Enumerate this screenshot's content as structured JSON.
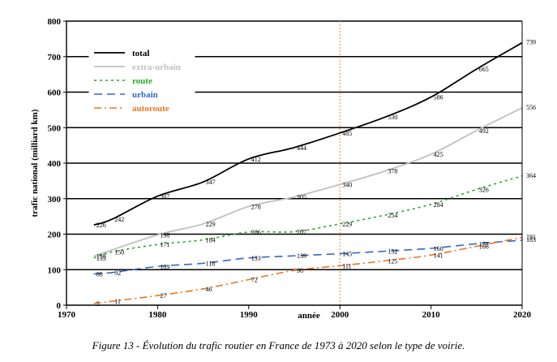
{
  "chart_data": {
    "type": "line",
    "xlabel": "année",
    "ylabel": "trafic national (milliard km)",
    "xlim": [
      1970,
      2020
    ],
    "ylim": [
      0,
      800
    ],
    "x_ticks": [
      "1970",
      "1980",
      "1990",
      "2000",
      "2010",
      "2020"
    ],
    "y_ticks": [
      "0",
      "100",
      "200",
      "300",
      "400",
      "500",
      "600",
      "700",
      "800"
    ],
    "grid": "horizontal",
    "reference_line": {
      "x": 2000,
      "color": "#f0a040"
    },
    "legend_position": "top-left",
    "series": [
      {
        "name": "total",
        "color": "#000000",
        "style": "solid",
        "x": [
          1973,
          1975,
          1980,
          1985,
          1990,
          1995,
          2000,
          2005,
          2010,
          2015,
          2020
        ],
        "y": [
          226,
          242,
          307,
          347,
          412,
          444,
          485,
          530,
          586,
          665,
          739
        ],
        "labels": [
          "226",
          "242",
          "307",
          "347",
          "412",
          "444",
          "485",
          "530",
          "586",
          "665",
          "739"
        ]
      },
      {
        "name": "extra-urbain",
        "color": "#c0c0c0",
        "style": "solid",
        "x": [
          1973,
          1980,
          1985,
          1990,
          1995,
          2000,
          2005,
          2010,
          2015,
          2020
        ],
        "y": [
          138,
          198,
          229,
          278,
          305,
          340,
          378,
          425,
          492,
          556
        ],
        "labels": [
          "138",
          "198",
          "229",
          "278",
          "305",
          "340",
          "378",
          "425",
          "492",
          "556"
        ]
      },
      {
        "name": "route",
        "color": "#22aa22",
        "style": "dotted",
        "x": [
          1973,
          1975,
          1980,
          1985,
          1990,
          1995,
          2000,
          2005,
          2010,
          2015,
          2020
        ],
        "y": [
          133,
          150,
          171,
          184,
          206,
          207,
          229,
          254,
          284,
          326,
          364
        ],
        "labels": [
          "133",
          "150",
          "171",
          "184",
          "206",
          "207",
          "229",
          "254",
          "284",
          "326",
          "364"
        ]
      },
      {
        "name": "urbain",
        "color": "#3366cc",
        "style": "dashed",
        "x": [
          1973,
          1975,
          1980,
          1985,
          1990,
          1995,
          2000,
          2005,
          2010,
          2015,
          2020
        ],
        "y": [
          88,
          92,
          109,
          118,
          133,
          139,
          145,
          152,
          160,
          173,
          183
        ],
        "labels": [
          "88",
          "92",
          "109",
          "118",
          "133",
          "139",
          "145",
          "152",
          "160",
          "173",
          "183"
        ]
      },
      {
        "name": "autoroute",
        "color": "#e87722",
        "style": "dashdot",
        "x": [
          1973,
          1975,
          1980,
          1985,
          1990,
          1995,
          2000,
          2005,
          2010,
          2015,
          2020
        ],
        "y": [
          5,
          11,
          27,
          46,
          72,
          98,
          111,
          125,
          141,
          166,
          191
        ],
        "labels": [
          "5",
          "11",
          "27",
          "46",
          "72",
          "98",
          "111",
          "125",
          "141",
          "166",
          "191"
        ]
      }
    ]
  },
  "caption": "Figure 13 -   Évolution du trafic routier en France de 1973 à 2020 selon le type de voirie."
}
